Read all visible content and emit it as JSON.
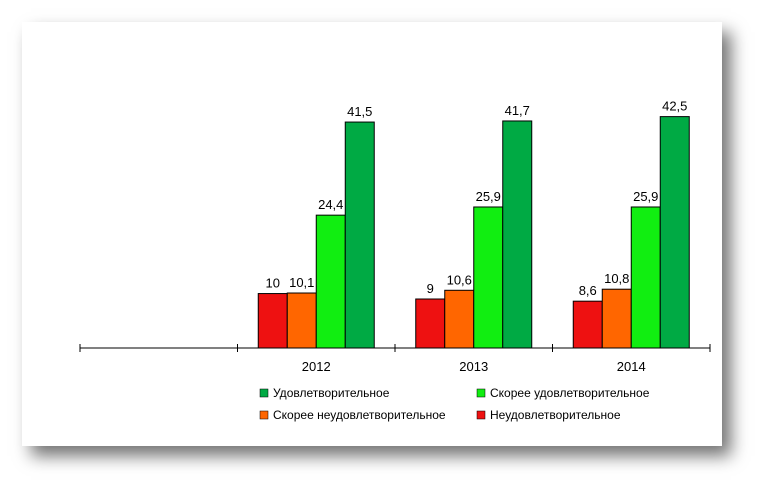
{
  "chart_data": {
    "type": "bar",
    "categories": [
      "",
      "2012",
      "2013",
      "2014"
    ],
    "series": [
      {
        "name": "Неудовлетворительное",
        "color": "#ee1111",
        "values": [
          null,
          10,
          9,
          8.6
        ],
        "labels": [
          "",
          "10",
          "9",
          "8,6"
        ]
      },
      {
        "name": "Скорее неудовлетворительное",
        "color": "#ff6600",
        "values": [
          null,
          10.1,
          10.6,
          10.8
        ],
        "labels": [
          "",
          "10,1",
          "10,6",
          "10,8"
        ]
      },
      {
        "name": "Скорее удовлетворительное",
        "color": "#11ee11",
        "values": [
          null,
          24.4,
          25.9,
          25.9
        ],
        "labels": [
          "",
          "24,4",
          "25,9",
          "25,9"
        ]
      },
      {
        "name": "Удовлетворительное",
        "color": "#00aa44",
        "values": [
          null,
          41.5,
          41.7,
          42.5
        ],
        "labels": [
          "",
          "41,5",
          "41,7",
          "42,5"
        ]
      }
    ],
    "legend_order": [
      3,
      2,
      1,
      0
    ],
    "ylim": [
      0,
      45
    ],
    "grid": false,
    "legend_position": "bottom",
    "title": "",
    "xlabel": "",
    "ylabel": ""
  }
}
